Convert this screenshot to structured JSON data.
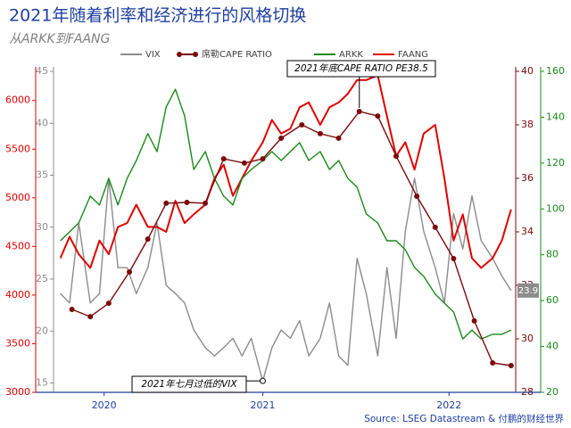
{
  "chart_data": {
    "type": "line",
    "title": "2021年随着利率和经济进行的风格切换",
    "subtitle": "从ARKK到FAANG",
    "source": "Source: LSEG Datastream & 付鹏的财经世界",
    "xlim": [
      2020.59,
      2022.6
    ],
    "xticks": [
      {
        "value": 2020.81,
        "label": "2020"
      },
      {
        "value": 2021.5,
        "label": "2021"
      },
      {
        "value": 2022.31,
        "label": "2022"
      }
    ],
    "ylim": [
      3000,
      6300
    ],
    "yticks": [
      3000,
      3500,
      4000,
      4500,
      5000,
      5500,
      6000
    ],
    "y2lim": [
      14.1,
      45
    ],
    "y2ticks": [
      15,
      20,
      25,
      30,
      35,
      40,
      45
    ],
    "y3lim": [
      28,
      40
    ],
    "y3ticks": [
      28,
      30,
      32,
      34,
      36,
      38,
      40
    ],
    "y4lim": [
      20,
      160
    ],
    "y4ticks": [
      20,
      40,
      60,
      80,
      100,
      120,
      140,
      160
    ],
    "x": [
      2020.62,
      2020.66,
      2020.7,
      2020.75,
      2020.79,
      2020.83,
      2020.87,
      2020.91,
      2020.95,
      2021.0,
      2021.04,
      2021.08,
      2021.12,
      2021.16,
      2021.2,
      2021.25,
      2021.29,
      2021.33,
      2021.37,
      2021.41,
      2021.45,
      2021.5,
      2021.54,
      2021.58,
      2021.62,
      2021.66,
      2021.7,
      2021.75,
      2021.79,
      2021.83,
      2021.87,
      2021.91,
      2021.95,
      2022.0,
      2022.04,
      2022.08,
      2022.12,
      2022.16,
      2022.2,
      2022.25,
      2022.29,
      2022.33,
      2022.37,
      2022.41,
      2022.45,
      2022.5,
      2022.54,
      2022.58
    ],
    "series": [
      {
        "name": "VIX",
        "color": "#8c8c8c",
        "axis": "y2",
        "values": [
          23.6,
          22.7,
          30.4,
          22.7,
          23.6,
          34.7,
          26.1,
          26.1,
          23.6,
          26.1,
          30.4,
          24.4,
          23.6,
          22.7,
          20.1,
          18.4,
          17.6,
          18.4,
          19.3,
          17.6,
          19.3,
          15.2,
          18.4,
          20.1,
          19.3,
          21.0,
          17.6,
          19.3,
          22.7,
          17.6,
          16.7,
          27.0,
          23.6,
          17.6,
          26.1,
          19.3,
          29.6,
          34.7,
          29.6,
          26.1,
          22.7,
          31.3,
          27.9,
          33.0,
          28.7,
          27.0,
          25.3,
          23.9
        ]
      },
      {
        "name": "席勒CAPE RATIO",
        "color": "#7b0a0a",
        "axis": "y3",
        "x": [
          2020.67,
          2020.75,
          2020.83,
          2020.92,
          2021.0,
          2021.08,
          2021.17,
          2021.25,
          2021.33,
          2021.42,
          2021.5,
          2021.58,
          2021.67,
          2021.75,
          2021.83,
          2021.92,
          2022.0,
          2022.08,
          2022.17,
          2022.25,
          2022.33,
          2022.42,
          2022.5,
          2022.58
        ],
        "values": [
          31.1,
          30.83,
          31.33,
          32.5,
          33.73,
          35.07,
          35.1,
          35.07,
          36.73,
          36.57,
          36.73,
          37.5,
          38.0,
          37.67,
          37.5,
          38.5,
          38.33,
          36.83,
          35.33,
          34.17,
          33.0,
          30.67,
          29.1,
          29.0
        ]
      },
      {
        "name": "ARKK",
        "color": "#1a8a1a",
        "axis": "y4",
        "values": [
          86.1,
          90.0,
          93.9,
          105.6,
          101.7,
          113.3,
          101.7,
          113.3,
          121.1,
          132.8,
          125.0,
          144.5,
          152.2,
          140.6,
          117.2,
          125.0,
          113.3,
          105.6,
          101.7,
          113.3,
          117.2,
          121.1,
          125.0,
          121.1,
          125.0,
          128.9,
          121.1,
          125.0,
          117.2,
          121.1,
          113.3,
          109.5,
          97.8,
          93.9,
          86.1,
          86.1,
          82.2,
          74.5,
          70.6,
          62.8,
          58.9,
          55.0,
          43.3,
          47.2,
          43.3,
          45.3,
          45.3,
          47.2
        ]
      },
      {
        "name": "FAANG",
        "color": "#e00000",
        "axis": "y",
        "values": [
          4380,
          4600,
          4420,
          4280,
          4560,
          4420,
          4700,
          4740,
          4930,
          4700,
          4700,
          4650,
          4970,
          4740,
          4830,
          4930,
          5200,
          5340,
          5020,
          5200,
          5380,
          5570,
          5800,
          5660,
          5710,
          5930,
          5980,
          5750,
          5930,
          5980,
          6070,
          6210,
          6210,
          6260,
          5840,
          5430,
          5570,
          5290,
          5660,
          5750,
          5200,
          4560,
          4830,
          4380,
          4280,
          4380,
          4560,
          4880
        ]
      }
    ],
    "annotations": [
      {
        "text": "2021年底CAPE RATIO PE38.5"
      },
      {
        "text": "2021年七月过低的VIX"
      },
      {
        "text": "23.9"
      }
    ]
  }
}
